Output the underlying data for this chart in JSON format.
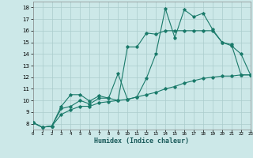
{
  "xlabel": "Humidex (Indice chaleur)",
  "bg_color": "#cce8e8",
  "grid_color": "#aacccc",
  "line_color": "#1a7a6a",
  "xlim": [
    0,
    23
  ],
  "ylim": [
    7.5,
    18.5
  ],
  "xticks": [
    0,
    1,
    2,
    3,
    4,
    5,
    6,
    7,
    8,
    9,
    10,
    11,
    12,
    13,
    14,
    15,
    16,
    17,
    18,
    19,
    20,
    21,
    22,
    23
  ],
  "yticks": [
    8,
    9,
    10,
    11,
    12,
    13,
    14,
    15,
    16,
    17,
    18
  ],
  "line1": {
    "x": [
      0,
      1,
      2,
      3,
      4,
      5,
      6,
      7,
      8,
      9,
      10,
      11,
      12,
      13,
      14,
      15,
      16,
      17,
      18,
      19,
      20,
      21,
      22,
      23
    ],
    "y": [
      8.1,
      7.7,
      7.8,
      9.5,
      10.5,
      10.5,
      9.95,
      10.4,
      10.2,
      12.3,
      10.1,
      10.3,
      11.9,
      14.0,
      17.9,
      15.4,
      17.8,
      17.2,
      17.5,
      16.1,
      15.0,
      14.8,
      12.2,
      12.2
    ]
  },
  "line2": {
    "x": [
      0,
      1,
      2,
      3,
      4,
      5,
      6,
      7,
      8,
      9,
      10,
      11,
      12,
      13,
      14,
      15,
      16,
      17,
      18,
      19,
      20,
      21,
      22,
      23
    ],
    "y": [
      8.1,
      7.7,
      7.8,
      9.3,
      9.5,
      10.0,
      9.7,
      10.2,
      10.2,
      10.0,
      14.6,
      14.6,
      15.8,
      15.7,
      16.0,
      16.0,
      16.0,
      16.0,
      16.0,
      16.0,
      15.0,
      14.7,
      14.0,
      12.2
    ]
  },
  "line3": {
    "x": [
      0,
      1,
      2,
      3,
      4,
      5,
      6,
      7,
      8,
      9,
      10,
      11,
      12,
      13,
      14,
      15,
      16,
      17,
      18,
      19,
      20,
      21,
      22,
      23
    ],
    "y": [
      8.1,
      7.7,
      7.8,
      8.8,
      9.2,
      9.5,
      9.5,
      9.8,
      9.9,
      10.0,
      10.1,
      10.3,
      10.5,
      10.7,
      11.0,
      11.2,
      11.5,
      11.7,
      11.9,
      12.0,
      12.1,
      12.1,
      12.2,
      12.2
    ]
  }
}
